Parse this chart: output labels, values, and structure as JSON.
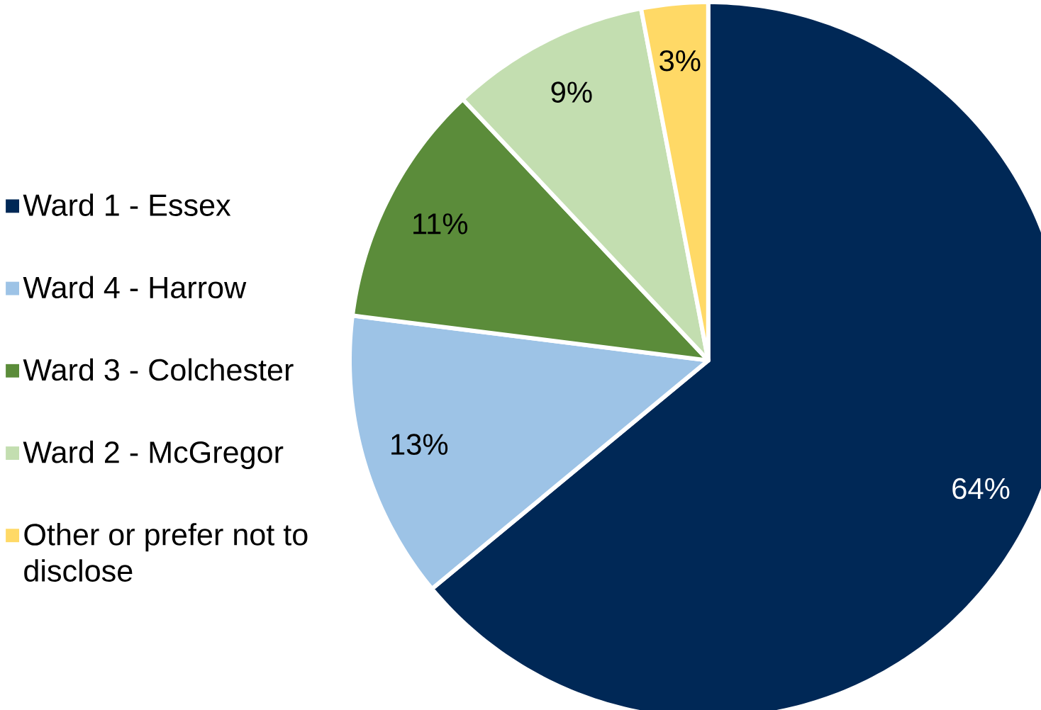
{
  "chart_data": {
    "type": "pie",
    "categories": [
      "Ward 1 - Essex",
      "Ward 4 - Harrow",
      "Ward 3 - Colchester",
      "Ward 2 - McGregor",
      "Other or prefer not to disclose"
    ],
    "values": [
      64,
      13,
      11,
      9,
      3
    ],
    "colors": [
      "#002856",
      "#9dc3e6",
      "#5b8c3a",
      "#c3deb0",
      "#ffd966"
    ],
    "value_labels": [
      "64%",
      "13%",
      "11%",
      "9%",
      "3%"
    ],
    "legend": "left"
  }
}
